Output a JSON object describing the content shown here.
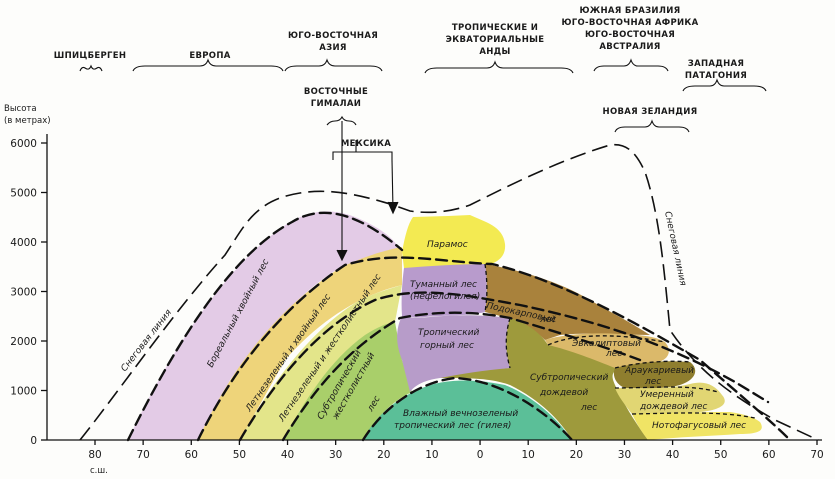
{
  "axis": {
    "y_title_1": "Высота",
    "y_title_2": "(в метрах)",
    "y_ticks": [
      "6000",
      "5000",
      "4000",
      "3000",
      "2000",
      "1000",
      "0"
    ],
    "x_ticks": [
      "80",
      "70",
      "60",
      "50",
      "40",
      "30",
      "20",
      "10",
      "0",
      "10",
      "20",
      "30",
      "40",
      "50",
      "60",
      "70"
    ],
    "x_hemisphere": "с.ш."
  },
  "regions": {
    "spitsbergen": "ШПИЦБЕРГЕН",
    "europe": "ЕВРОПА",
    "se_asia_1": "ЮГО-ВОСТОЧНАЯ",
    "se_asia_2": "АЗИЯ",
    "andes_1": "ТРОПИЧЕСКИЕ И",
    "andes_2": "ЭКВАТОРИАЛЬНЫЕ",
    "andes_3": "АНДЫ",
    "south_1": "ЮЖНАЯ БРАЗИЛИЯ",
    "south_2": "ЮГО-ВОСТОЧНАЯ АФРИКА",
    "south_3": "ЮГО-ВОСТОЧНАЯ",
    "south_4": "АВСТРАЛИЯ",
    "patagonia_1": "ЗАПАДНАЯ",
    "patagonia_2": "ПАТАГОНИЯ",
    "himalaya_1": "ВОСТОЧНЫЕ",
    "himalaya_2": "ГИМАЛАИ",
    "mexico": "МЕКСИКА",
    "new_zealand": "НОВАЯ ЗЕЛАНДИЯ"
  },
  "zones": {
    "snow_line_left": "Снеговая линия",
    "snow_line_right": "Снеговая линия",
    "boreal": "Бореальный хвойный лес",
    "summer_green_conifer": "Летнезеленый и хвойный лес",
    "summer_green_sclerophyll": "Летнезеленый и жестколистный лес",
    "subtropical_sclerophyll_1": "Субтропический",
    "subtropical_sclerophyll_2": "жестколистный",
    "subtropical_sclerophyll_3": "лес",
    "paramo": "Парамос",
    "cloud_forest_1": "Туманный лес",
    "cloud_forest_2": "(нефелогилея)",
    "podocarpus_1": "Подокарповый",
    "podocarpus_2": "лес",
    "tropical_montane_1": "Тропический",
    "tropical_montane_2": "горный лес",
    "eucalyptus_1": "Эвкалиптовый",
    "eucalyptus_2": "лес",
    "araucaria_1": "Араукариевый",
    "araucaria_2": "лес",
    "subtropical_rain_1": "Субтропический",
    "subtropical_rain_2": "дождевой",
    "subtropical_rain_3": "лес",
    "temperate_rain_1": "Умеренный",
    "temperate_rain_2": "дождевой лес",
    "nothofagus": "Нотофагусовый лес",
    "lowland_rain_1": "Влажный вечнозеленый",
    "lowland_rain_2": "тропический лес (гилея)"
  },
  "colors": {
    "boreal": "#e3cbe6",
    "summer_green_conifer": "#eed47a",
    "summer_green_sclerophyll": "#e3e58a",
    "subtropical_sclerophyll": "#a9cf6a",
    "paramo": "#f3ea52",
    "cloud_forest": "#b89bcc",
    "tropical_montane": "#b79cc9",
    "podocarpus": "#a9823c",
    "subtropical_rain": "#9e9a3c",
    "eucalyptus": "#dbb96a",
    "araucaria": "#8f7e2e",
    "temperate_rain": "#e1d673",
    "nothofagus": "#f0e465",
    "lowland_rain": "#5bbf98"
  }
}
